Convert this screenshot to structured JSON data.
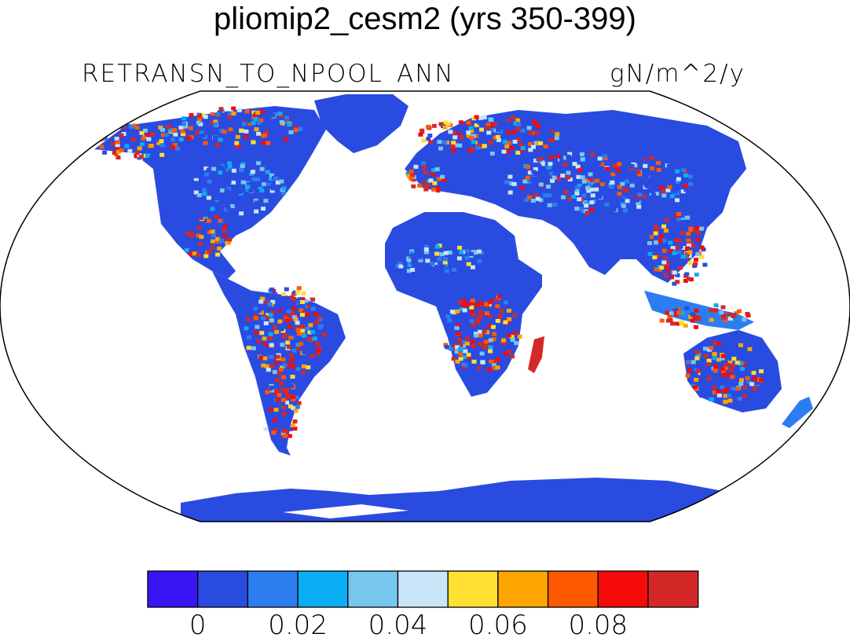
{
  "title": "pliomip2_cesm2 (yrs 350-399)",
  "variable": "RETRANSN_TO_NPOOL",
  "season": "ANN",
  "units": "gN/m^2/y",
  "projection": "Robinson",
  "colorbar": {
    "colors": [
      "#3b14f5",
      "#2a4be0",
      "#2c7ef0",
      "#0aaef5",
      "#77c6ee",
      "#c8e6f7",
      "#ffe030",
      "#ffa500",
      "#ff5a00",
      "#f50a0a",
      "#d42828"
    ],
    "labels": [
      "0",
      "0.02",
      "0.04",
      "0.06",
      "0.08"
    ]
  },
  "colors": {
    "land_base": "#2a4be0",
    "ocean": "#ffffff",
    "no_data_land": "#ffffff"
  }
}
